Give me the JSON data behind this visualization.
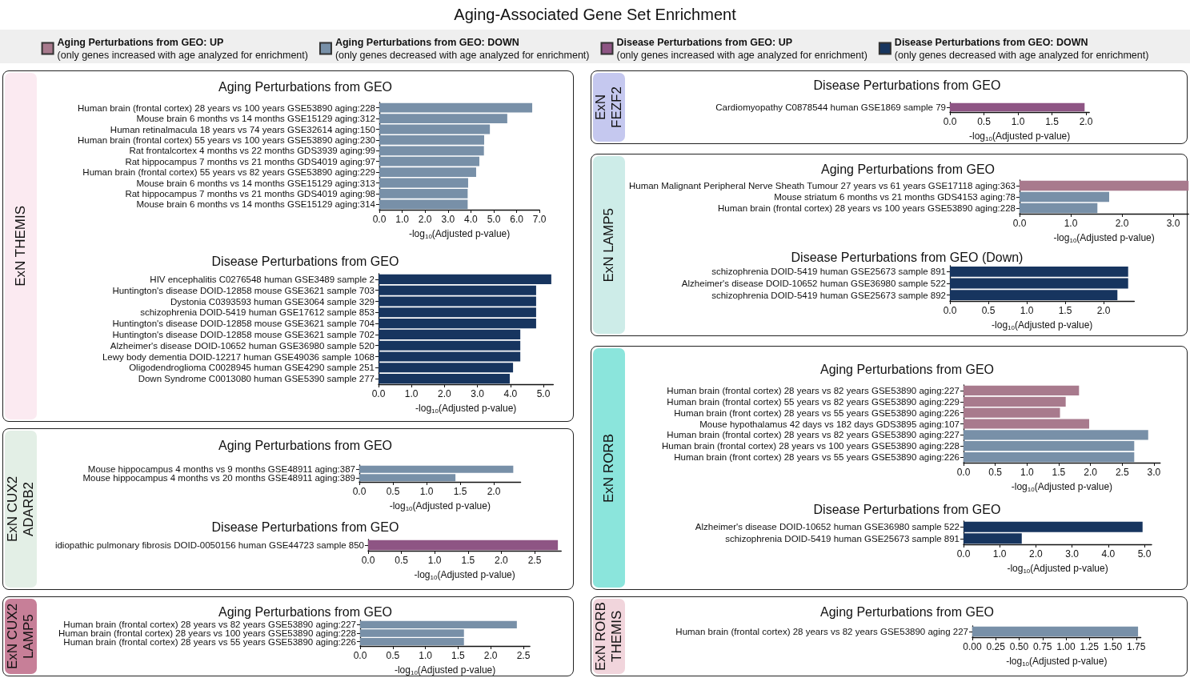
{
  "chart_data": [
    {
      "type": "other",
      "title": "Aging-Associated Gene Set Enrichment",
      "legend": "top",
      "series": [
        {
          "name": "Aging Perturbations from GEO: UP\n(only genes increased with age analyzed for enrichment)",
          "color": "#a87a8d"
        },
        {
          "name": "Aging Perturbations from GEO: DOWN\n(only genes decreased with age analyzed for enrichment)",
          "color": "#7890a8"
        },
        {
          "name": "Disease Perturbations from GEO: UP\n(only genes increased with age analyzed for enrichment)",
          "color": "#8e5584"
        },
        {
          "name": "Disease Perturbations from GEO: DOWN\n(only genes decreased with age analyzed for enrichment)",
          "color": "#17355f"
        }
      ]
    },
    {
      "type": "bar",
      "orientation": "horizontal",
      "title": "Aging Perturbations from GEO",
      "xlabel": "-log$_{10}$(Adjusted p-value)",
      "annotations": [
        "ExN THEMIS"
      ],
      "categories": [
        "Human brain (frontal cortex) 28 years vs 100 years GSE53890 aging:228",
        "Mouse brain 6 months vs 14 months GSE15129 aging:312",
        "Human retinalmacula 18 years vs 74 years GSE32614 aging:150",
        "Human brain (frontal cortex) 55 years vs 100 years GSE53890 aging:230",
        "Rat frontalcortex 4 months vs 22 months GDS3939 aging:99",
        "Rat hippocampus 7 months vs 21 months GDS4019 aging:97",
        "Human brain (frontal cortex) 55 years vs 82 years GSE53890 aging:229",
        "Mouse brain 6 months vs 14 months GSE15129 aging:313",
        "Rat hippocampus 7 months vs 21 months GDS4019 aging:98",
        "Mouse brain 6 months vs 14 months GSE15129 aging:314"
      ],
      "values": [
        6.68,
        5.59,
        4.83,
        4.58,
        4.57,
        4.37,
        4.23,
        3.88,
        3.86,
        3.86
      ],
      "colors": [
        "#7890a8",
        "#7890a8",
        "#7890a8",
        "#7890a8",
        "#7890a8",
        "#7890a8",
        "#7890a8",
        "#7890a8",
        "#7890a8",
        "#7890a8"
      ],
      "xlim": [
        0,
        7
      ],
      "xticks": [
        {
          "value": 0,
          "label": "0.0"
        },
        {
          "value": 1,
          "label": "1.0"
        },
        {
          "value": 2,
          "label": "2.0"
        },
        {
          "value": 3,
          "label": "3.0"
        },
        {
          "value": 4,
          "label": "4.0"
        },
        {
          "value": 5,
          "label": "5.0"
        },
        {
          "value": 6,
          "label": "6.0"
        },
        {
          "value": 7,
          "label": "7.0"
        }
      ]
    },
    {
      "type": "bar",
      "orientation": "horizontal",
      "title": "Disease Perturbations from GEO",
      "xlabel": "-log$_{10}$(Adjusted p-value)",
      "categories": [
        "HIV encephalitis C0276548 human GSE3489 sample 2",
        "Huntington's disease DOID-12858 mouse GSE3621 sample 703",
        "Dystonia C0393593 human GSE3064 sample 329",
        "schizophrenia DOID-5419 human GSE17612 sample 853",
        "Huntington's disease DOID-12858 mouse GSE3621 sample 704",
        "Huntington's disease DOID-12858 mouse GSE3621 sample 702",
        "Alzheimer's disease DOID-10652 human GSE36980 sample 520",
        "Lewy body dementia DOID-12217 human GSE49036 sample 1068",
        "Oligodendroglioma C0028945 human GSE4290 sample 251",
        "Down Syndrome C0013080 human GSE5390 sample 277"
      ],
      "values": [
        5.24,
        4.78,
        4.78,
        4.78,
        4.78,
        4.3,
        4.3,
        4.3,
        4.08,
        3.98
      ],
      "colors": [
        "#17355f",
        "#17355f",
        "#17355f",
        "#17355f",
        "#17355f",
        "#17355f",
        "#17355f",
        "#17355f",
        "#17355f",
        "#17355f"
      ],
      "xlim": [
        0,
        5.3
      ],
      "xticks": [
        {
          "value": 0,
          "label": "0.0"
        },
        {
          "value": 1,
          "label": "1.0"
        },
        {
          "value": 2,
          "label": "2.0"
        },
        {
          "value": 3,
          "label": "3.0"
        },
        {
          "value": 4,
          "label": "4.0"
        },
        {
          "value": 5,
          "label": "5.0"
        }
      ]
    },
    {
      "type": "bar",
      "orientation": "horizontal",
      "title": "Aging Perturbations from GEO",
      "xlabel": "-log$_{10}$(Adjusted p-value)",
      "annotations": [
        "ExN CUX2 ADARB2"
      ],
      "categories": [
        "Mouse hippocampus 4 months vs 9 months GSE48911 aging:387",
        "Mouse hippocampus 4 months vs 20 months GSE48911 aging:389"
      ],
      "values": [
        2.29,
        1.43
      ],
      "colors": [
        "#7890a8",
        "#7890a8"
      ],
      "xlim": [
        0,
        2.4
      ],
      "xticks": [
        {
          "value": 0,
          "label": "0.0"
        },
        0.5,
        {
          "value": 1,
          "label": "1.0"
        },
        1.5,
        {
          "value": 2,
          "label": "2.0"
        }
      ]
    },
    {
      "type": "bar",
      "orientation": "horizontal",
      "title": "Disease Perturbations from GEO",
      "xlabel": "-log$_{10}$(Adjusted p-value)",
      "categories": [
        "idiopathic pulmonary fibrosis DOID-0050156 human GSE44723 sample 850"
      ],
      "values": [
        2.85
      ],
      "colors": [
        "#8e5584"
      ],
      "xlim": [
        0,
        2.9
      ],
      "xticks": [
        {
          "value": 0,
          "label": "0.0"
        },
        0.5,
        {
          "value": 1,
          "label": "1.0"
        },
        1.5,
        {
          "value": 2,
          "label": "2.0"
        },
        2.5
      ]
    },
    {
      "type": "bar",
      "orientation": "horizontal",
      "title": "Aging Perturbations from GEO",
      "xlabel": "-log$_{10}$(Adjusted p-value)",
      "annotations": [
        "ExN CUX2 LAMP5"
      ],
      "categories": [
        "Human brain (frontal cortex) 28 years vs 82 years GSE53890 aging:227",
        "Human brain (frontal cortex) 28 years vs 100 years GSE53890 aging:228",
        "Human brain (frontal cortex) 28 years vs 55 years GSE53890 aging:226"
      ],
      "values": [
        2.4,
        1.59,
        1.59
      ],
      "colors": [
        "#7890a8",
        "#7890a8",
        "#7890a8"
      ],
      "xlim": [
        0,
        2.6
      ],
      "xticks": [
        {
          "value": 0,
          "label": "0.0"
        },
        0.5,
        {
          "value": 1,
          "label": "1.0"
        },
        1.5,
        {
          "value": 2,
          "label": "2.0"
        },
        2.5
      ]
    },
    {
      "type": "bar",
      "orientation": "horizontal",
      "title": "Disease Perturbations from GEO",
      "xlabel": "-log$_{10}$(Adjusted p-value)",
      "annotations": [
        "ExN FEZF2"
      ],
      "categories": [
        "Cardiomyopathy C0878544 human GSE1869 sample 79"
      ],
      "values": [
        1.98
      ],
      "colors": [
        "#8e5584"
      ],
      "xlim": [
        0,
        2.05
      ],
      "xticks": [
        {
          "value": 0,
          "label": "0.0"
        },
        0.5,
        {
          "value": 1,
          "label": "1.0"
        },
        1.5,
        {
          "value": 2,
          "label": "2.0"
        }
      ]
    },
    {
      "type": "bar",
      "orientation": "horizontal",
      "title": "Aging Perturbations from GEO",
      "xlabel": "-log$_{10}$(Adjusted p-value)",
      "annotations": [
        "ExN LAMP5"
      ],
      "categories": [
        "Human Malignant Peripheral Nerve Sheath Tumour 27 years vs 61 years GSE17118 aging:363",
        "Mouse striatum 6 months vs 21 months GDS4153 aging:78",
        "Human brain (frontal cortex) 28 years vs 100 years GSE53890 aging:228"
      ],
      "values": [
        3.3,
        1.75,
        1.52
      ],
      "colors": [
        "#a87a8d",
        "#7890a8",
        "#7890a8"
      ],
      "xlim": [
        0,
        3.3
      ],
      "xticks": [
        {
          "value": 0,
          "label": "0.0"
        },
        {
          "value": 1,
          "label": "1.0"
        },
        {
          "value": 2,
          "label": "2.0"
        },
        {
          "value": 3,
          "label": "3.0"
        }
      ]
    },
    {
      "type": "bar",
      "orientation": "horizontal",
      "title": "Disease Perturbations from GEO (Down)",
      "xlabel": "-log$_{10}$(Adjusted p-value)",
      "categories": [
        "schizophrenia DOID-5419 human GSE25673 sample 891",
        "Alzheimer's disease DOID-10652 human GSE36980 sample 522",
        "schizophrenia DOID-5419 human GSE25673 sample 892"
      ],
      "values": [
        2.32,
        2.32,
        2.18
      ],
      "colors": [
        "#17355f",
        "#17355f",
        "#17355f"
      ],
      "xlim": [
        0,
        2.4
      ],
      "xticks": [
        {
          "value": 0,
          "label": "0.0"
        },
        0.5,
        {
          "value": 1,
          "label": "1.0"
        },
        1.5,
        {
          "value": 2,
          "label": "2.0"
        }
      ]
    },
    {
      "type": "bar",
      "orientation": "horizontal",
      "title": "Aging Perturbations from GEO",
      "xlabel": "-log$_{10}$(Adjusted p-value)",
      "annotations": [
        "ExN RORB"
      ],
      "categories": [
        "Human brain (frontal cortex) 28 years vs 82 years GSE53890 aging:227",
        "Human brain (frontal cortex) 55 years vs 82 years GSE53890 aging:229",
        "Human brain (front cortex) 28 years vs 55 years GSE53890 aging:226",
        "Mouse hypothalamus 42 days vs 182 days GDS3895 aging:107",
        "Human brain (frontal cortex) 28 years vs 82 years GSE53890 aging:227",
        "Human brain (frontal cortex) 28 years vs 100 years GSE53890 aging:228",
        "Human brain (front cortex) 28 years vs 55 years GSE53890 aging:226"
      ],
      "values": [
        1.82,
        1.61,
        1.52,
        1.98,
        2.91,
        2.69,
        2.69
      ],
      "colors": [
        "#a87a8d",
        "#a87a8d",
        "#a87a8d",
        "#a87a8d",
        "#7890a8",
        "#7890a8",
        "#7890a8"
      ],
      "xlim": [
        0,
        3.1
      ],
      "xticks": [
        {
          "value": 0,
          "label": "0.0"
        },
        0.5,
        {
          "value": 1,
          "label": "1.0"
        },
        1.5,
        {
          "value": 2,
          "label": "2.0"
        },
        2.5,
        {
          "value": 3,
          "label": "3.0"
        }
      ]
    },
    {
      "type": "bar",
      "orientation": "horizontal",
      "title": "Disease Perturbations from GEO",
      "xlabel": "-log$_{10}$(Adjusted p-value)",
      "categories": [
        "Alzheimer's disease DOID-10652 human GSE36980 sample 522",
        "schizophrenia DOID-5419 human GSE25673 sample 891"
      ],
      "values": [
        4.95,
        1.61
      ],
      "colors": [
        "#17355f",
        "#17355f"
      ],
      "xlim": [
        0,
        5.2
      ],
      "xticks": [
        {
          "value": 0,
          "label": "0.0"
        },
        {
          "value": 1,
          "label": "1.0"
        },
        {
          "value": 2,
          "label": "2.0"
        },
        {
          "value": 3,
          "label": "3.0"
        },
        {
          "value": 4,
          "label": "4.0"
        },
        {
          "value": 5,
          "label": "5.0"
        }
      ]
    },
    {
      "type": "bar",
      "orientation": "horizontal",
      "title": "Aging Perturbations from GEO",
      "xlabel": "-log$_{10}$(Adjusted p-value)",
      "annotations": [
        "ExN RORB THEMIS"
      ],
      "categories": [
        "Human brain (frontal cortex) 28 years vs 82 years GSE53890 aging 227"
      ],
      "values": [
        1.77
      ],
      "colors": [
        "#7890a8"
      ],
      "xlim": [
        0,
        1.8
      ],
      "xticks": [
        {
          "value": 0,
          "label": "0.00"
        },
        0.25,
        {
          "value": 0.5,
          "label": "0.50"
        },
        0.75,
        {
          "value": 1,
          "label": "1.00"
        },
        1.25,
        {
          "value": 1.5,
          "label": "1.50"
        },
        1.75
      ]
    }
  ]
}
